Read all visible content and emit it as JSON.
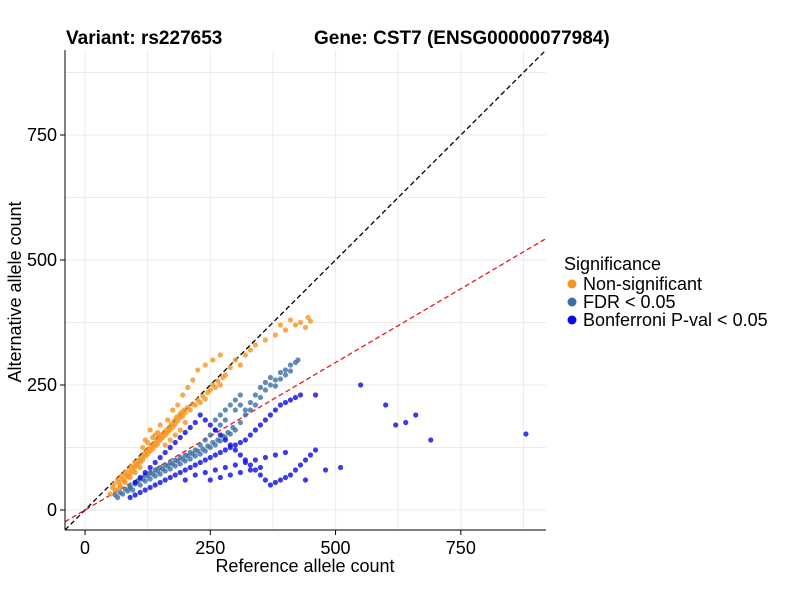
{
  "chart_data": {
    "type": "scatter",
    "title_variant": "Variant: rs227653",
    "title_gene": "Gene: CST7 (ENSG00000077984)",
    "xlabel": "Reference allele count",
    "ylabel": "Alternative allele count",
    "xlim": [
      -40,
      920
    ],
    "ylim": [
      -40,
      920
    ],
    "xticks": [
      0,
      250,
      500,
      750
    ],
    "yticks": [
      0,
      250,
      500,
      750
    ],
    "grid": true,
    "legend": {
      "title": "Significance",
      "position": "right",
      "entries": [
        {
          "label": "Non-significant",
          "color": "#F7941D"
        },
        {
          "label": "FDR < 0.05",
          "color": "#3C6EA5"
        },
        {
          "label": "Bonferroni P-val < 0.05",
          "color": "#0A0AE6"
        }
      ]
    },
    "reference_lines": [
      {
        "name": "identity",
        "slope": 1.0,
        "intercept": 0,
        "color": "#000000",
        "dash": true
      },
      {
        "name": "expected-ratio",
        "slope": 0.59,
        "intercept": 0,
        "color": "#E31A1C",
        "dash": true
      }
    ],
    "series": [
      {
        "name": "Non-significant",
        "color": "#F7941D",
        "points": [
          [
            50,
            32
          ],
          [
            55,
            45
          ],
          [
            58,
            52
          ],
          [
            62,
            40
          ],
          [
            65,
            60
          ],
          [
            68,
            55
          ],
          [
            70,
            48
          ],
          [
            72,
            68
          ],
          [
            75,
            62
          ],
          [
            78,
            58
          ],
          [
            80,
            75
          ],
          [
            82,
            70
          ],
          [
            85,
            66
          ],
          [
            88,
            80
          ],
          [
            90,
            72
          ],
          [
            92,
            88
          ],
          [
            95,
            78
          ],
          [
            98,
            85
          ],
          [
            100,
            95
          ],
          [
            102,
            88
          ],
          [
            105,
            92
          ],
          [
            108,
            100
          ],
          [
            110,
            96
          ],
          [
            112,
            105
          ],
          [
            115,
            100
          ],
          [
            118,
            112
          ],
          [
            120,
            108
          ],
          [
            122,
            118
          ],
          [
            125,
            112
          ],
          [
            128,
            122
          ],
          [
            130,
            118
          ],
          [
            132,
            128
          ],
          [
            135,
            122
          ],
          [
            138,
            132
          ],
          [
            140,
            128
          ],
          [
            142,
            138
          ],
          [
            145,
            132
          ],
          [
            148,
            145
          ],
          [
            150,
            140
          ],
          [
            152,
            150
          ],
          [
            155,
            145
          ],
          [
            158,
            155
          ],
          [
            160,
            150
          ],
          [
            162,
            160
          ],
          [
            165,
            155
          ],
          [
            168,
            165
          ],
          [
            170,
            160
          ],
          [
            172,
            172
          ],
          [
            175,
            166
          ],
          [
            178,
            178
          ],
          [
            180,
            172
          ],
          [
            182,
            185
          ],
          [
            185,
            178
          ],
          [
            188,
            190
          ],
          [
            190,
            185
          ],
          [
            192,
            195
          ],
          [
            195,
            188
          ],
          [
            198,
            200
          ],
          [
            200,
            195
          ],
          [
            205,
            205
          ],
          [
            210,
            200
          ],
          [
            215,
            212
          ],
          [
            220,
            210
          ],
          [
            225,
            220
          ],
          [
            230,
            215
          ],
          [
            235,
            228
          ],
          [
            240,
            222
          ],
          [
            245,
            235
          ],
          [
            250,
            240
          ],
          [
            255,
            250
          ],
          [
            260,
            245
          ],
          [
            265,
            258
          ],
          [
            270,
            250
          ],
          [
            275,
            265
          ],
          [
            280,
            270
          ],
          [
            290,
            285
          ],
          [
            300,
            300
          ],
          [
            310,
            290
          ],
          [
            320,
            310
          ],
          [
            330,
            320
          ],
          [
            340,
            330
          ],
          [
            360,
            340
          ],
          [
            380,
            350
          ],
          [
            390,
            370
          ],
          [
            400,
            360
          ],
          [
            410,
            380
          ],
          [
            420,
            370
          ],
          [
            430,
            375
          ],
          [
            440,
            365
          ],
          [
            445,
            385
          ],
          [
            450,
            378
          ],
          [
            140,
            150
          ],
          [
            130,
            160
          ],
          [
            120,
            140
          ],
          [
            150,
            170
          ],
          [
            165,
            180
          ],
          [
            175,
            200
          ],
          [
            185,
            210
          ],
          [
            195,
            230
          ],
          [
            205,
            245
          ],
          [
            215,
            260
          ],
          [
            225,
            280
          ],
          [
            240,
            290
          ],
          [
            255,
            300
          ],
          [
            270,
            310
          ],
          [
            200,
            175
          ],
          [
            190,
            160
          ],
          [
            180,
            150
          ],
          [
            170,
            140
          ],
          [
            160,
            130
          ],
          [
            110,
            85
          ],
          [
            100,
            75
          ],
          [
            90,
            65
          ],
          [
            80,
            55
          ],
          [
            70,
            45
          ],
          [
            60,
            38
          ],
          [
            115,
            125
          ],
          [
            125,
            135
          ],
          [
            135,
            145
          ],
          [
            145,
            155
          ]
        ]
      },
      {
        "name": "FDR < 0.05",
        "color": "#3C6EA5",
        "points": [
          [
            60,
            30
          ],
          [
            70,
            35
          ],
          [
            80,
            42
          ],
          [
            90,
            48
          ],
          [
            95,
            40
          ],
          [
            100,
            52
          ],
          [
            105,
            58
          ],
          [
            110,
            50
          ],
          [
            115,
            62
          ],
          [
            120,
            58
          ],
          [
            125,
            68
          ],
          [
            130,
            62
          ],
          [
            135,
            72
          ],
          [
            140,
            68
          ],
          [
            145,
            78
          ],
          [
            150,
            72
          ],
          [
            155,
            82
          ],
          [
            160,
            78
          ],
          [
            165,
            88
          ],
          [
            170,
            82
          ],
          [
            175,
            92
          ],
          [
            180,
            88
          ],
          [
            185,
            98
          ],
          [
            190,
            92
          ],
          [
            195,
            102
          ],
          [
            200,
            98
          ],
          [
            205,
            108
          ],
          [
            210,
            102
          ],
          [
            215,
            112
          ],
          [
            220,
            108
          ],
          [
            225,
            118
          ],
          [
            230,
            112
          ],
          [
            235,
            122
          ],
          [
            240,
            118
          ],
          [
            245,
            128
          ],
          [
            250,
            125
          ],
          [
            255,
            135
          ],
          [
            260,
            130
          ],
          [
            265,
            140
          ],
          [
            270,
            138
          ],
          [
            275,
            148
          ],
          [
            280,
            145
          ],
          [
            285,
            155
          ],
          [
            290,
            152
          ],
          [
            295,
            165
          ],
          [
            300,
            160
          ],
          [
            310,
            175
          ],
          [
            320,
            190
          ],
          [
            330,
            200
          ],
          [
            340,
            210
          ],
          [
            350,
            225
          ],
          [
            360,
            240
          ],
          [
            370,
            250
          ],
          [
            380,
            260
          ],
          [
            390,
            275
          ],
          [
            400,
            280
          ],
          [
            410,
            290
          ],
          [
            420,
            295
          ],
          [
            425,
            300
          ],
          [
            300,
            200
          ],
          [
            310,
            210
          ],
          [
            280,
            180
          ],
          [
            270,
            170
          ],
          [
            260,
            160
          ],
          [
            250,
            150
          ],
          [
            240,
            140
          ],
          [
            230,
            130
          ],
          [
            220,
            120
          ],
          [
            210,
            115
          ],
          [
            200,
            110
          ],
          [
            190,
            105
          ],
          [
            180,
            100
          ],
          [
            170,
            95
          ],
          [
            160,
            90
          ],
          [
            150,
            85
          ],
          [
            140,
            80
          ],
          [
            130,
            75
          ],
          [
            120,
            70
          ],
          [
            110,
            62
          ],
          [
            100,
            55
          ],
          [
            90,
            45
          ],
          [
            85,
            38
          ],
          [
            75,
            32
          ],
          [
            65,
            25
          ],
          [
            260,
            180
          ],
          [
            270,
            190
          ],
          [
            280,
            200
          ],
          [
            290,
            210
          ],
          [
            300,
            220
          ],
          [
            310,
            230
          ],
          [
            320,
            200
          ],
          [
            330,
            215
          ],
          [
            340,
            230
          ],
          [
            350,
            245
          ],
          [
            360,
            255
          ],
          [
            370,
            265
          ],
          [
            380,
            248
          ],
          [
            390,
            262
          ],
          [
            400,
            270
          ],
          [
            410,
            278
          ]
        ]
      },
      {
        "name": "Bonferroni P-val < 0.05",
        "color": "#0A0AE6",
        "points": [
          [
            90,
            25
          ],
          [
            100,
            30
          ],
          [
            110,
            35
          ],
          [
            120,
            40
          ],
          [
            130,
            45
          ],
          [
            140,
            50
          ],
          [
            150,
            55
          ],
          [
            160,
            60
          ],
          [
            170,
            65
          ],
          [
            180,
            70
          ],
          [
            190,
            75
          ],
          [
            200,
            80
          ],
          [
            210,
            85
          ],
          [
            220,
            90
          ],
          [
            230,
            95
          ],
          [
            240,
            100
          ],
          [
            250,
            105
          ],
          [
            260,
            110
          ],
          [
            270,
            115
          ],
          [
            280,
            120
          ],
          [
            290,
            125
          ],
          [
            300,
            130
          ],
          [
            310,
            135
          ],
          [
            320,
            140
          ],
          [
            330,
            150
          ],
          [
            340,
            160
          ],
          [
            350,
            170
          ],
          [
            360,
            180
          ],
          [
            370,
            190
          ],
          [
            380,
            200
          ],
          [
            390,
            210
          ],
          [
            400,
            215
          ],
          [
            410,
            220
          ],
          [
            420,
            225
          ],
          [
            430,
            230
          ],
          [
            440,
            60
          ],
          [
            460,
            230
          ],
          [
            480,
            80
          ],
          [
            510,
            85
          ],
          [
            550,
            250
          ],
          [
            600,
            210
          ],
          [
            620,
            170
          ],
          [
            640,
            175
          ],
          [
            660,
            190
          ],
          [
            690,
            140
          ],
          [
            880,
            152
          ],
          [
            460,
            120
          ],
          [
            450,
            110
          ],
          [
            440,
            100
          ],
          [
            430,
            90
          ],
          [
            420,
            80
          ],
          [
            410,
            70
          ],
          [
            400,
            65
          ],
          [
            390,
            60
          ],
          [
            380,
            55
          ],
          [
            370,
            50
          ],
          [
            360,
            60
          ],
          [
            350,
            70
          ],
          [
            340,
            80
          ],
          [
            330,
            90
          ],
          [
            320,
            100
          ],
          [
            310,
            110
          ],
          [
            300,
            120
          ],
          [
            290,
            130
          ],
          [
            280,
            140
          ],
          [
            270,
            150
          ],
          [
            260,
            160
          ],
          [
            250,
            170
          ],
          [
            240,
            180
          ],
          [
            230,
            190
          ],
          [
            220,
            175
          ],
          [
            210,
            165
          ],
          [
            200,
            155
          ],
          [
            190,
            145
          ],
          [
            180,
            135
          ],
          [
            170,
            125
          ],
          [
            160,
            115
          ],
          [
            150,
            105
          ],
          [
            140,
            95
          ],
          [
            130,
            85
          ],
          [
            120,
            75
          ],
          [
            110,
            65
          ],
          [
            100,
            55
          ],
          [
            200,
            60
          ],
          [
            220,
            70
          ],
          [
            240,
            75
          ],
          [
            260,
            80
          ],
          [
            280,
            85
          ],
          [
            300,
            90
          ],
          [
            320,
            95
          ],
          [
            340,
            100
          ],
          [
            360,
            105
          ],
          [
            380,
            110
          ],
          [
            400,
            115
          ],
          [
            250,
            60
          ],
          [
            270,
            65
          ],
          [
            290,
            70
          ],
          [
            310,
            75
          ],
          [
            330,
            80
          ],
          [
            350,
            85
          ]
        ]
      }
    ]
  }
}
